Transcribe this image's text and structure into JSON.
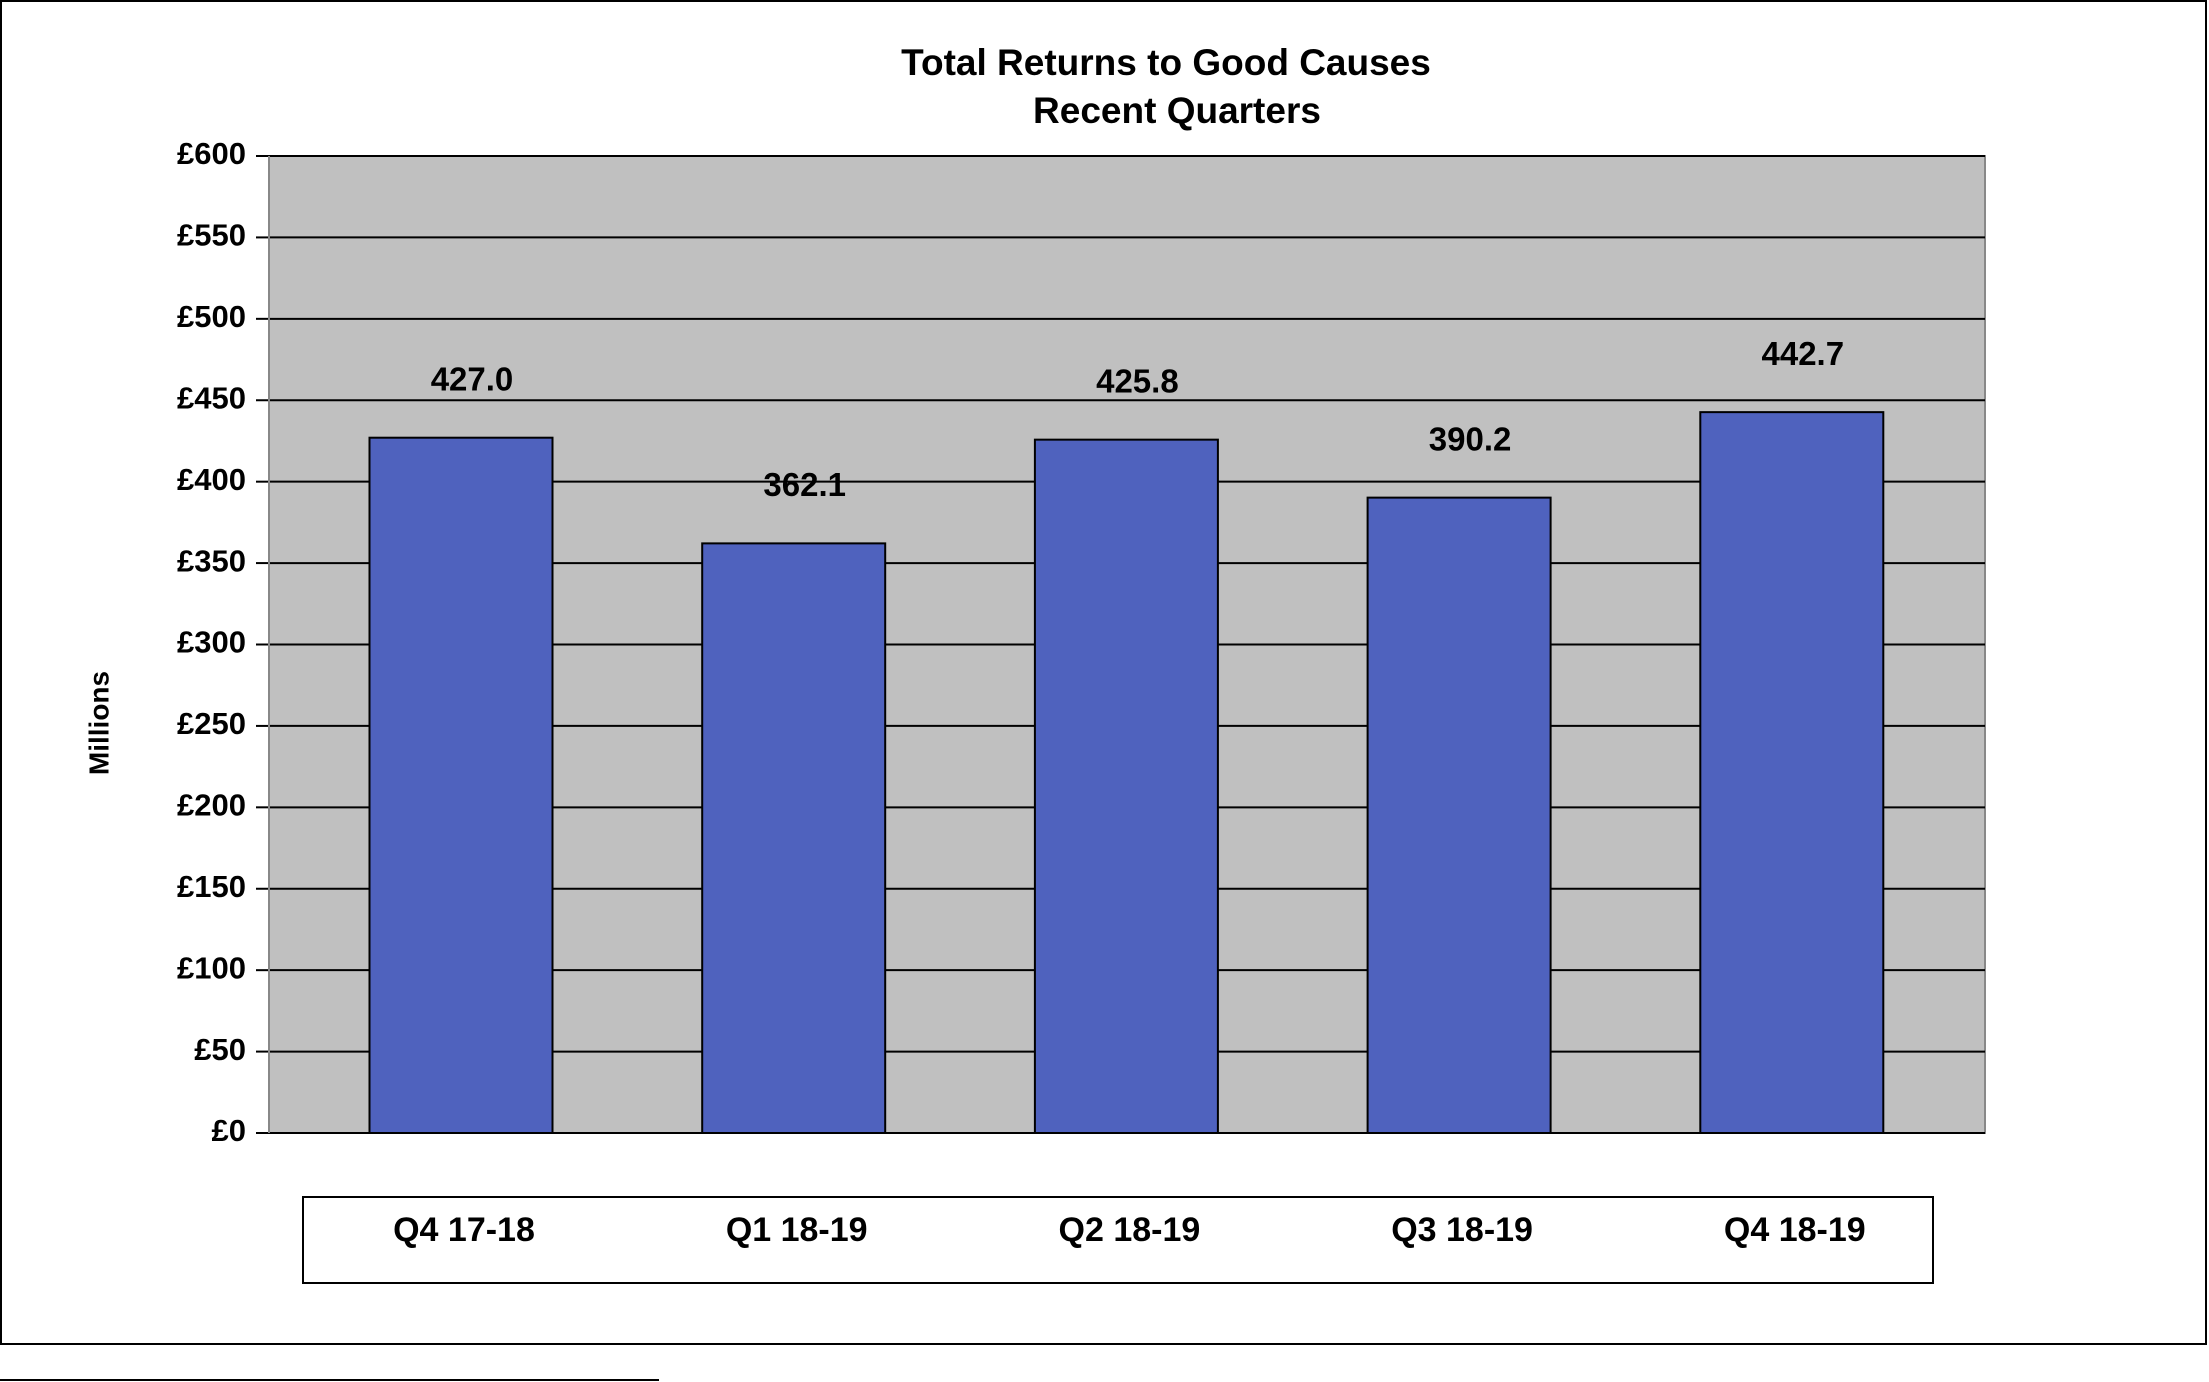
{
  "chart_data": {
    "type": "bar",
    "title": "Total Returns to Good Causes",
    "subtitle": "Recent Quarters",
    "y_label": "Millions",
    "categories": [
      "Q4 17-18",
      "Q1 18-19",
      "Q2 18-19",
      "Q3 18-19",
      "Q4 18-19"
    ],
    "values": [
      427.0,
      362.1,
      425.8,
      390.2,
      442.7
    ],
    "value_labels": [
      "427.0",
      "362.1",
      "425.8",
      "390.2",
      "442.7"
    ],
    "color": "#4f62be",
    "ylim": [
      0,
      600
    ],
    "yticks": [
      {
        "value": 0,
        "label": "£0"
      },
      {
        "value": 50,
        "label": "£50"
      },
      {
        "value": 100,
        "label": "£100"
      },
      {
        "value": 150,
        "label": "£150"
      },
      {
        "value": 200,
        "label": "£200"
      },
      {
        "value": 250,
        "label": "£250"
      },
      {
        "value": 300,
        "label": "£300"
      },
      {
        "value": 350,
        "label": "£350"
      },
      {
        "value": 400,
        "label": "£400"
      },
      {
        "value": 450,
        "label": "£450"
      },
      {
        "value": 500,
        "label": "£500"
      },
      {
        "value": 550,
        "label": "£550"
      },
      {
        "value": 600,
        "label": "£600"
      }
    ],
    "grid": true
  }
}
